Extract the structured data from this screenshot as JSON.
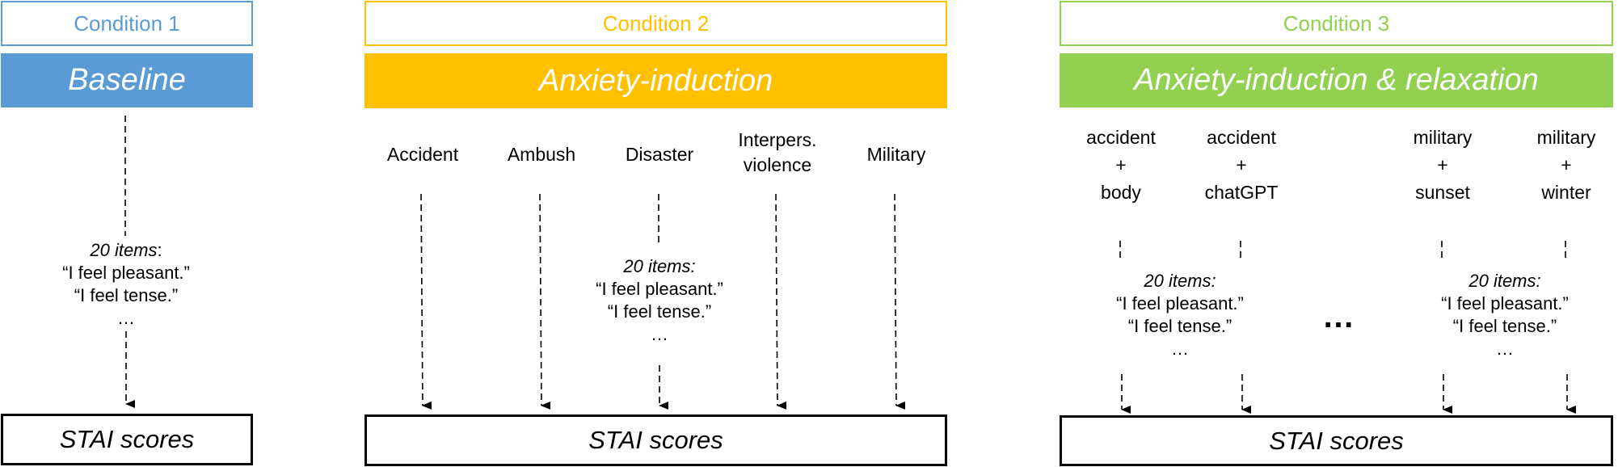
{
  "colors": {
    "condition1": "#5b9bd5",
    "condition2": "#ffc000",
    "condition3": "#92d050"
  },
  "condition1": {
    "header": "Condition 1",
    "title": "Baseline",
    "items": {
      "count_label": "20 items",
      "colon": ":",
      "line1": "“I feel pleasant.”",
      "line2": "“I feel tense.”",
      "ellipsis": "…"
    },
    "output": "STAI scores"
  },
  "condition2": {
    "header": "Condition 2",
    "title": "Anxiety-induction",
    "narratives": [
      {
        "line1": "Accident"
      },
      {
        "line1": "Ambush"
      },
      {
        "line1": "Disaster"
      },
      {
        "line1": "Interpers.",
        "line2": "violence"
      },
      {
        "line1": "Military"
      }
    ],
    "items": {
      "count_label": "20 items:",
      "line1": "“I feel pleasant.”",
      "line2": "“I feel tense.”",
      "ellipsis": "…"
    },
    "output": "STAI scores"
  },
  "condition3": {
    "header": "Condition 3",
    "title": "Anxiety-induction & relaxation",
    "combos": [
      {
        "top": "accident",
        "plus": "+",
        "bottom": "body"
      },
      {
        "top": "accident",
        "plus": "+",
        "bottom": "chatGPT"
      },
      {
        "top": "military",
        "plus": "+",
        "bottom": "sunset"
      },
      {
        "top": "military",
        "plus": "+",
        "bottom": "winter"
      }
    ],
    "items_left": {
      "count_label": "20 items:",
      "line1": "“I feel pleasant.”",
      "line2": "“I feel tense.”",
      "ellipsis": "…"
    },
    "items_right": {
      "count_label": "20 items:",
      "line1": "“I feel pleasant.”",
      "line2": "“I feel tense.”",
      "ellipsis": "…"
    },
    "gap_ellipsis": "…",
    "output": "STAI scores"
  }
}
